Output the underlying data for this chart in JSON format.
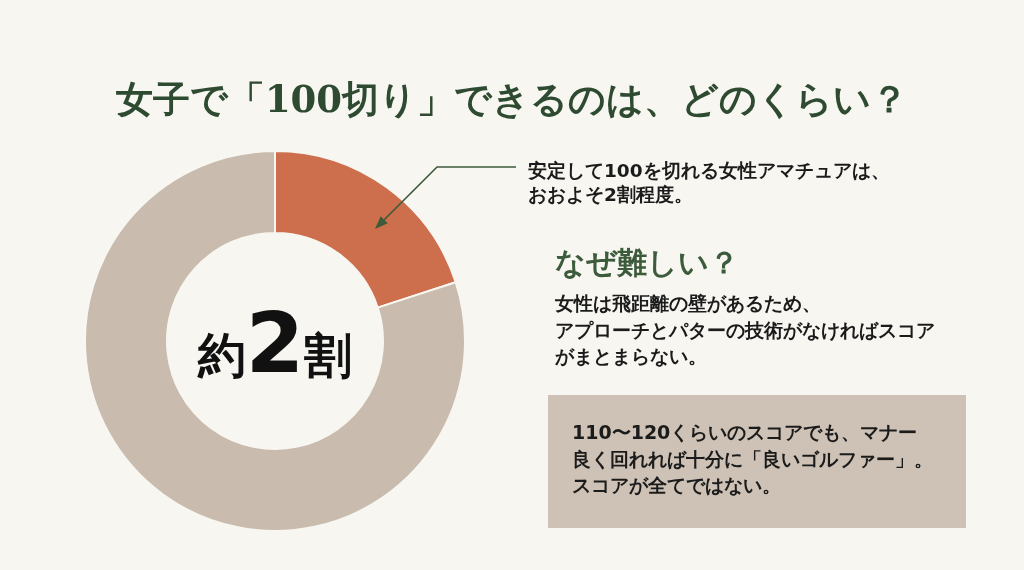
{
  "chart_data": {
    "type": "donut",
    "title": "女子で「100切り」できるのは、どのくらい？",
    "categories": [
      null,
      null
    ],
    "values": [
      20,
      80
    ],
    "colors": [
      "#cd6f4c",
      "#c9bbad"
    ],
    "annotations": [
      "約2割",
      "安定して100を切れる女性アマチュアは、おおよそ2割程度。",
      "なぜ難しい？",
      "女性は飛距離の壁があるため、",
      "アプローチとパターの技術がなければスコアがまとまらない。",
      "110〜120くらいのスコアでも、マナー良く回れれば十分に「良いゴルファー」。スコアが全てではない。"
    ]
  }
}
